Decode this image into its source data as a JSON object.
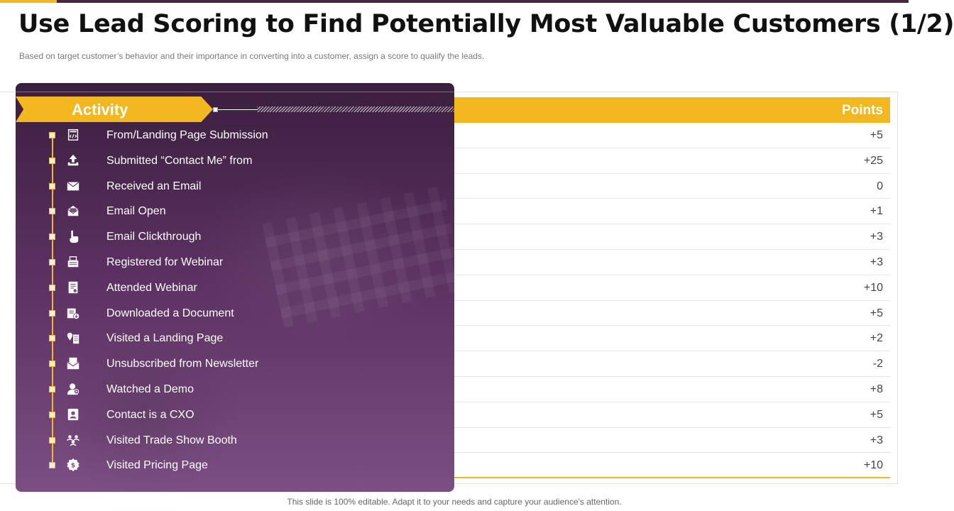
{
  "slide": {
    "title": "Use Lead Scoring to Find Potentially Most Valuable Customers (1/2)",
    "subtitle": "Based on target customer’s behavior  and their importance in converting  into a customer, assign a score to qualify the leads.",
    "footer": "This slide is 100% editable. Adapt it to your needs and capture your audience's attention."
  },
  "table": {
    "activity_header": "Activity",
    "points_header": "Points",
    "rows": [
      {
        "activity": "From/Landing Page Submission",
        "points": "+5",
        "icon": "form-code-icon"
      },
      {
        "activity": "Submitted “Contact Me” from",
        "points": "+25",
        "icon": "upload-tray-icon"
      },
      {
        "activity": "Received an Email",
        "points": "0",
        "icon": "envelope-icon"
      },
      {
        "activity": "Email Open",
        "points": "+1",
        "icon": "open-envelope-icon"
      },
      {
        "activity": "Email Clickthrough",
        "points": "+3",
        "icon": "pointer-hand-icon"
      },
      {
        "activity": "Registered for Webinar",
        "points": "+3",
        "icon": "register-icon"
      },
      {
        "activity": "Attended Webinar",
        "points": "+10",
        "icon": "document-badge-icon"
      },
      {
        "activity": "Downloaded a Document",
        "points": "+5",
        "icon": "document-download-icon"
      },
      {
        "activity": "Visited a Landing Page",
        "points": "+2",
        "icon": "location-building-icon"
      },
      {
        "activity": "Unsubscribed from Newsletter",
        "points": "-2",
        "icon": "envelope-stack-icon"
      },
      {
        "activity": "Watched a Demo",
        "points": "+8",
        "icon": "person-play-icon"
      },
      {
        "activity": "Contact is a CXO",
        "points": "+5",
        "icon": "contact-card-icon"
      },
      {
        "activity": "Visited Trade Show Booth",
        "points": "+3",
        "icon": "people-network-icon"
      },
      {
        "activity": "Visited Pricing Page",
        "points": "+10",
        "icon": "dollar-badge-icon"
      }
    ]
  },
  "colors": {
    "accent": "#f3b720",
    "panel": "#5a3060",
    "top_bar": "#4a2443"
  }
}
